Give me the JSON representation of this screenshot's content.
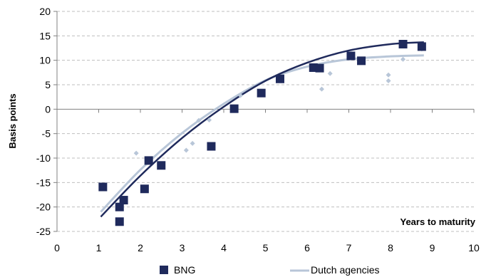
{
  "chart_data": {
    "type": "scatter",
    "ylabel": "Basis points",
    "xlabel": "Years to maturity",
    "xlim": [
      0,
      10
    ],
    "ylim": [
      -25,
      20
    ],
    "x_ticks": [
      "0",
      "1",
      "2",
      "3",
      "4",
      "5",
      "6",
      "7",
      "8",
      "9",
      "10"
    ],
    "y_ticks": [
      "20",
      "15",
      "10",
      "5",
      "0",
      "-5",
      "-10",
      "-15",
      "-20",
      "-25"
    ],
    "grid": "horizontal dashed",
    "legend_position": "bottom",
    "series": [
      {
        "name": "BNG",
        "color": "#1f2a5c",
        "marker": "square",
        "points": [
          [
            1.1,
            -15.9
          ],
          [
            1.5,
            -23.0
          ],
          [
            1.5,
            -20.0
          ],
          [
            1.6,
            -18.6
          ],
          [
            2.1,
            -16.3
          ],
          [
            2.2,
            -10.5
          ],
          [
            2.5,
            -11.5
          ],
          [
            3.7,
            -7.6
          ],
          [
            4.25,
            0.1
          ],
          [
            4.9,
            3.3
          ],
          [
            5.35,
            6.2
          ],
          [
            6.15,
            8.5
          ],
          [
            6.3,
            8.4
          ],
          [
            7.05,
            10.9
          ],
          [
            7.3,
            9.9
          ],
          [
            8.3,
            13.3
          ],
          [
            8.75,
            12.8
          ]
        ],
        "trend": [
          [
            1.05,
            -22.0
          ],
          [
            2,
            -13.6
          ],
          [
            3,
            -5.9
          ],
          [
            4,
            0.5
          ],
          [
            5,
            5.8
          ],
          [
            6,
            9.5
          ],
          [
            7,
            12.0
          ],
          [
            8,
            13.3
          ],
          [
            8.8,
            13.7
          ]
        ]
      },
      {
        "name": "Dutch agencies",
        "color": "#b8c6d8",
        "marker": "diamond",
        "points": [
          [
            1.9,
            -9.0
          ],
          [
            3.1,
            -8.4
          ],
          [
            3.25,
            -7.0
          ],
          [
            3.4,
            -2.3
          ],
          [
            3.65,
            -2.2
          ],
          [
            4.4,
            2.8
          ],
          [
            6.35,
            4.1
          ],
          [
            6.55,
            7.3
          ],
          [
            7.95,
            7.0
          ],
          [
            7.95,
            5.8
          ],
          [
            8.3,
            10.2
          ],
          [
            8.75,
            12.3
          ]
        ],
        "trend": [
          [
            1.05,
            -21.0
          ],
          [
            2,
            -12.4
          ],
          [
            3,
            -4.9
          ],
          [
            4,
            1.1
          ],
          [
            5,
            5.9
          ],
          [
            6,
            8.7
          ],
          [
            7,
            10.2
          ],
          [
            8,
            10.8
          ],
          [
            8.8,
            11.0
          ]
        ]
      }
    ]
  }
}
